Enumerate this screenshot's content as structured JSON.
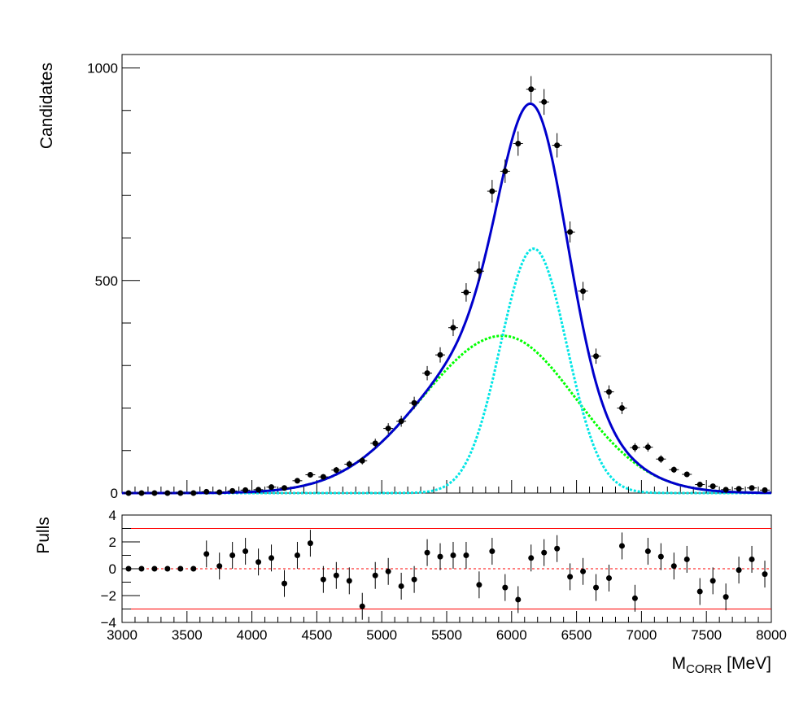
{
  "chart_data": {
    "type": "scatter",
    "xlabel_main": "M",
    "xlabel_sub": "CORR",
    "xlabel_unit": " [MeV]",
    "ylabel_top": "Candidates",
    "ylabel_bottom": "Pulls",
    "top": {
      "xlim": [
        3000,
        8000
      ],
      "ylim": [
        0,
        1000
      ],
      "yticks": [
        "0",
        "500",
        "1000"
      ],
      "data": {
        "x": [
          3050,
          3150,
          3250,
          3350,
          3450,
          3550,
          3650,
          3750,
          3850,
          3950,
          4050,
          4150,
          4250,
          4350,
          4450,
          4550,
          4650,
          4750,
          4850,
          4950,
          5050,
          5150,
          5250,
          5350,
          5450,
          5550,
          5650,
          5750,
          5850,
          5950,
          6050,
          6150,
          6250,
          6350,
          6450,
          6550,
          6650,
          6750,
          6850,
          6950,
          7050,
          7150,
          7250,
          7350,
          7450,
          7550,
          7650,
          7750,
          7850,
          7950
        ],
        "y": [
          0,
          0,
          0,
          0,
          0,
          0,
          3,
          2,
          5,
          7,
          8,
          14,
          12,
          29,
          43,
          38,
          54,
          68,
          76,
          117,
          152,
          169,
          212,
          282,
          325,
          389,
          472,
          522,
          710,
          757,
          822,
          950,
          920,
          818,
          614,
          475,
          322,
          238,
          200,
          107,
          108,
          80,
          55,
          44,
          20,
          16,
          8,
          10,
          12,
          7
        ]
      },
      "curves": [
        {
          "name": "total",
          "color": "#0000cc"
        },
        {
          "name": "component-1",
          "color": "#00ff00"
        },
        {
          "name": "component-2",
          "color": "#00e5e5"
        }
      ]
    },
    "bottom": {
      "xlim": [
        3000,
        8000
      ],
      "ylim": [
        -4,
        4
      ],
      "yticks": [
        "4",
        "2",
        "0",
        "−2",
        "−4"
      ],
      "xticks": [
        "3000",
        "3500",
        "4000",
        "4500",
        "5000",
        "5500",
        "6000",
        "6500",
        "7000",
        "7500",
        "8000"
      ],
      "hlines": [
        3,
        0,
        -3
      ],
      "line_color": "#ff0000",
      "data": {
        "x": [
          3050,
          3150,
          3250,
          3350,
          3450,
          3550,
          3650,
          3750,
          3850,
          3950,
          4050,
          4150,
          4250,
          4350,
          4450,
          4550,
          4650,
          4750,
          4850,
          4950,
          5050,
          5150,
          5250,
          5350,
          5450,
          5550,
          5650,
          5750,
          5850,
          5950,
          6050,
          6150,
          6250,
          6350,
          6450,
          6550,
          6650,
          6750,
          6850,
          6950,
          7050,
          7150,
          7250,
          7350,
          7450,
          7550,
          7650,
          7750,
          7850,
          7950
        ],
        "y": [
          0,
          0,
          0,
          0,
          0,
          0,
          1.1,
          0.2,
          1.0,
          1.3,
          0.5,
          0.8,
          -1.1,
          1.0,
          1.9,
          -0.8,
          -0.5,
          -0.9,
          -2.8,
          -0.5,
          -0.2,
          -1.3,
          -0.8,
          1.2,
          0.9,
          1.0,
          1.0,
          -1.2,
          1.3,
          -1.4,
          -2.3,
          0.8,
          1.2,
          1.5,
          -0.6,
          -0.2,
          -1.4,
          -0.7,
          1.7,
          -2.2,
          1.3,
          0.9,
          0.2,
          0.7,
          -1.7,
          -0.9,
          -2.1,
          -0.1,
          0.7,
          -0.4
        ]
      }
    }
  }
}
